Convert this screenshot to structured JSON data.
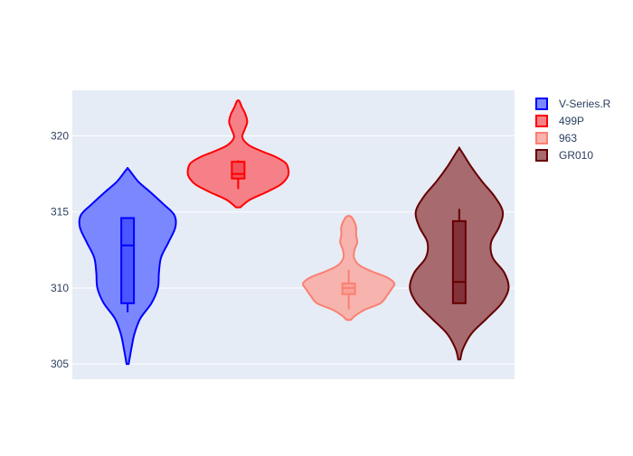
{
  "chart_data": {
    "type": "violin",
    "title": "",
    "xlabel": "",
    "ylabel": "",
    "ylim": [
      304,
      323
    ],
    "yticks": [
      305,
      310,
      315,
      320
    ],
    "grid": true,
    "legend_position": "top-right",
    "series": [
      {
        "name": "V-Series.R",
        "color": "#0000ff",
        "fill": "#7b87ff",
        "box_fill": "#4a57ff",
        "range": [
          305.0,
          317.8
        ],
        "whisker": [
          308.4,
          314.6
        ],
        "q1": 309.0,
        "median": 312.8,
        "q3": 314.6,
        "density": [
          [
            305.0,
            0.02
          ],
          [
            306.0,
            0.07
          ],
          [
            307.0,
            0.13
          ],
          [
            308.0,
            0.24
          ],
          [
            309.0,
            0.45
          ],
          [
            310.0,
            0.57
          ],
          [
            311.0,
            0.59
          ],
          [
            312.0,
            0.63
          ],
          [
            313.0,
            0.77
          ],
          [
            314.0,
            0.9
          ],
          [
            314.8,
            0.88
          ],
          [
            315.5,
            0.68
          ],
          [
            316.3,
            0.43
          ],
          [
            317.0,
            0.2
          ],
          [
            317.8,
            0.02
          ]
        ]
      },
      {
        "name": "499P",
        "color": "#ff0000",
        "fill": "#f68087",
        "box_fill": "#f0525c",
        "range": [
          315.3,
          322.3
        ],
        "whisker": [
          316.5,
          318.4
        ],
        "q1": 317.2,
        "median": 317.5,
        "q3": 318.3,
        "density": [
          [
            315.3,
            0.04
          ],
          [
            315.8,
            0.22
          ],
          [
            316.3,
            0.53
          ],
          [
            316.8,
            0.8
          ],
          [
            317.3,
            0.93
          ],
          [
            317.7,
            0.95
          ],
          [
            318.2,
            0.9
          ],
          [
            318.6,
            0.72
          ],
          [
            319.0,
            0.44
          ],
          [
            319.4,
            0.2
          ],
          [
            319.9,
            0.08
          ],
          [
            320.4,
            0.12
          ],
          [
            320.9,
            0.17
          ],
          [
            321.4,
            0.14
          ],
          [
            321.9,
            0.07
          ],
          [
            322.3,
            0.02
          ]
        ]
      },
      {
        "name": "963",
        "color": "#fa8072",
        "fill": "#f7b3ad",
        "box_fill": "#f8a096",
        "range": [
          307.9,
          314.7
        ],
        "whisker": [
          308.6,
          311.2
        ],
        "q1": 309.6,
        "median": 310.0,
        "q3": 310.3,
        "density": [
          [
            307.9,
            0.04
          ],
          [
            308.2,
            0.13
          ],
          [
            308.6,
            0.32
          ],
          [
            309.0,
            0.6
          ],
          [
            309.5,
            0.72
          ],
          [
            309.9,
            0.8
          ],
          [
            310.3,
            0.86
          ],
          [
            310.7,
            0.72
          ],
          [
            311.1,
            0.43
          ],
          [
            311.5,
            0.2
          ],
          [
            312.0,
            0.1
          ],
          [
            312.5,
            0.11
          ],
          [
            313.0,
            0.16
          ],
          [
            313.5,
            0.14
          ],
          [
            314.0,
            0.14
          ],
          [
            314.4,
            0.1
          ],
          [
            314.7,
            0.04
          ]
        ]
      },
      {
        "name": "GR010",
        "color": "#660000",
        "fill": "#a66a6f",
        "box_fill": "#83323a",
        "range": [
          305.3,
          319.1
        ],
        "whisker": [
          309.0,
          315.2
        ],
        "q1": 309.0,
        "median": 310.4,
        "q3": 314.4,
        "density": [
          [
            305.3,
            0.02
          ],
          [
            306.0,
            0.07
          ],
          [
            307.0,
            0.23
          ],
          [
            308.0,
            0.52
          ],
          [
            309.0,
            0.8
          ],
          [
            310.0,
            0.93
          ],
          [
            311.0,
            0.85
          ],
          [
            312.0,
            0.63
          ],
          [
            313.0,
            0.6
          ],
          [
            314.0,
            0.75
          ],
          [
            315.0,
            0.82
          ],
          [
            316.0,
            0.67
          ],
          [
            317.0,
            0.43
          ],
          [
            318.0,
            0.22
          ],
          [
            319.1,
            0.02
          ]
        ]
      }
    ]
  }
}
